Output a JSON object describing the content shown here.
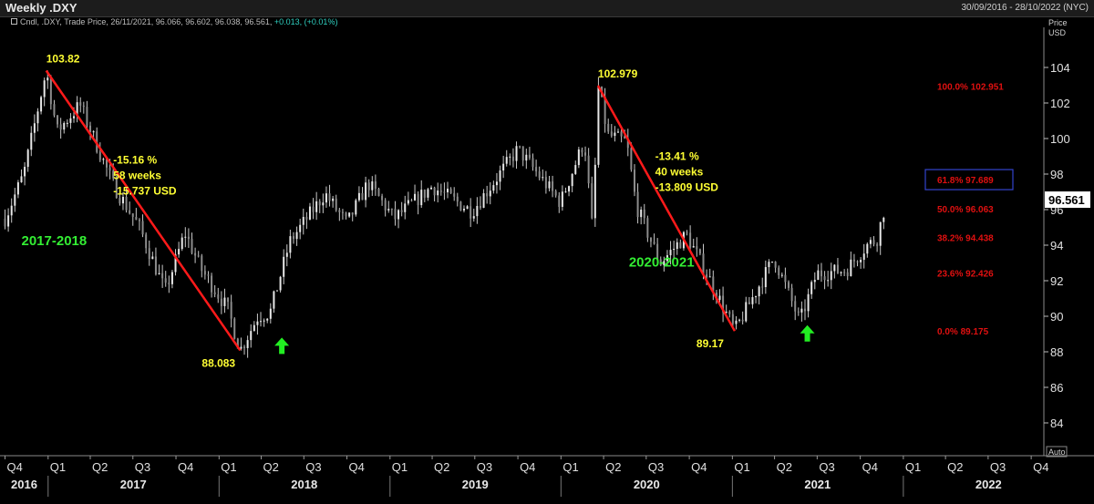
{
  "window": {
    "title": "Weekly .DXY",
    "date_range": "30/09/2016 - 28/10/2022 (NYC)"
  },
  "legend": {
    "text": "Cndl, .DXY, Trade Price, 26/11/2021, 96.066, 96.602, 96.038, 96.561,",
    "change": "+0.013, (+0.01%)"
  },
  "axis": {
    "price_title_1": "Price",
    "price_title_2": "USD",
    "auto_label": "Auto",
    "last_price": "96.561"
  },
  "colors": {
    "background": "#000000",
    "candle": "#c8c8c8",
    "trend": "#ff1a1a",
    "annotation": "#ffff33",
    "label": "#33ee33",
    "fib": "#e01010"
  },
  "chart_data": {
    "type": "candlestick",
    "ylim": [
      83,
      106
    ],
    "y_ticks": [
      84,
      86,
      88,
      90,
      92,
      94,
      96,
      98,
      100,
      102,
      104
    ],
    "x_quarter_labels": [
      "Q4",
      "Q1",
      "Q2",
      "Q3",
      "Q4",
      "Q1",
      "Q2",
      "Q3",
      "Q4",
      "Q1",
      "Q2",
      "Q3",
      "Q4",
      "Q1",
      "Q2",
      "Q3",
      "Q4",
      "Q1",
      "Q2",
      "Q3",
      "Q4",
      "Q1",
      "Q2",
      "Q3",
      "Q4"
    ],
    "x_year_labels": [
      "2016",
      "2017",
      "2018",
      "2019",
      "2020",
      "2021",
      "2022"
    ],
    "anchors": [
      {
        "date": "2016-10-01",
        "value": 95.5
      },
      {
        "date": "2016-11-10",
        "value": 98.0
      },
      {
        "date": "2016-12-28",
        "value": 103.82
      },
      {
        "date": "2017-01-20",
        "value": 100.4
      },
      {
        "date": "2017-03-10",
        "value": 101.9
      },
      {
        "date": "2017-05-20",
        "value": 97.4
      },
      {
        "date": "2017-07-15",
        "value": 95.0
      },
      {
        "date": "2017-09-08",
        "value": 91.4
      },
      {
        "date": "2017-10-20",
        "value": 94.7
      },
      {
        "date": "2017-11-25",
        "value": 92.6
      },
      {
        "date": "2018-01-20",
        "value": 90.4
      },
      {
        "date": "2018-02-15",
        "value": 88.083
      },
      {
        "date": "2018-03-25",
        "value": 90.0
      },
      {
        "date": "2018-04-20",
        "value": 90.2
      },
      {
        "date": "2018-06-01",
        "value": 94.2
      },
      {
        "date": "2018-08-15",
        "value": 96.9
      },
      {
        "date": "2018-10-01",
        "value": 95.2
      },
      {
        "date": "2018-11-15",
        "value": 97.5
      },
      {
        "date": "2019-01-10",
        "value": 95.5
      },
      {
        "date": "2019-04-01",
        "value": 97.3
      },
      {
        "date": "2019-06-25",
        "value": 95.9
      },
      {
        "date": "2019-10-01",
        "value": 99.4
      },
      {
        "date": "2019-12-31",
        "value": 96.4
      },
      {
        "date": "2020-02-20",
        "value": 99.9
      },
      {
        "date": "2020-03-09",
        "value": 94.6
      },
      {
        "date": "2020-03-20",
        "value": 102.979
      },
      {
        "date": "2020-04-10",
        "value": 100.2
      },
      {
        "date": "2020-05-20",
        "value": 99.8
      },
      {
        "date": "2020-06-10",
        "value": 96.2
      },
      {
        "date": "2020-07-31",
        "value": 93.0
      },
      {
        "date": "2020-09-25",
        "value": 94.6
      },
      {
        "date": "2020-11-15",
        "value": 92.0
      },
      {
        "date": "2021-01-06",
        "value": 89.17
      },
      {
        "date": "2021-03-31",
        "value": 93.3
      },
      {
        "date": "2021-05-25",
        "value": 89.7
      },
      {
        "date": "2021-06-30",
        "value": 92.4
      },
      {
        "date": "2021-09-01",
        "value": 92.6
      },
      {
        "date": "2021-10-15",
        "value": 94.0
      },
      {
        "date": "2021-11-05",
        "value": 94.3
      },
      {
        "date": "2021-11-26",
        "value": 96.561
      }
    ],
    "trendlines": [
      {
        "from": {
          "date": "2016-12-28",
          "value": 103.82
        },
        "to": {
          "date": "2018-02-15",
          "value": 88.083
        }
      },
      {
        "from": {
          "date": "2020-03-20",
          "value": 102.979
        },
        "to": {
          "date": "2021-01-06",
          "value": 89.17
        }
      }
    ],
    "price_labels": [
      {
        "text": "103.82",
        "date": "2016-12-28",
        "value": 103.82,
        "pos": "above"
      },
      {
        "text": "88.083",
        "date": "2018-02-15",
        "value": 88.083,
        "pos": "below"
      },
      {
        "text": "102.979",
        "date": "2020-03-20",
        "value": 102.979,
        "pos": "above"
      },
      {
        "text": "89.17",
        "date": "2021-01-06",
        "value": 89.17,
        "pos": "below"
      }
    ],
    "move_stats": [
      {
        "date": "2017-05-20",
        "value": 98.6,
        "lines": [
          "-15.16 %",
          "58 weeks",
          "-15.737 USD"
        ]
      },
      {
        "date": "2020-07-20",
        "value": 98.8,
        "lines": [
          "-13.41 %",
          "40 weeks",
          "-13.809 USD"
        ]
      }
    ],
    "period_labels": [
      {
        "text": "2017-2018",
        "date": "2016-11-05",
        "value": 94.0
      },
      {
        "text": "2020-2021",
        "date": "2020-05-25",
        "value": 92.8
      }
    ],
    "up_arrows": [
      {
        "date": "2018-05-15",
        "value": 88.8
      },
      {
        "date": "2021-06-10",
        "value": 89.5
      }
    ],
    "fibonacci": [
      {
        "level": "100.0%",
        "value": "102.951",
        "price": 102.951,
        "highlight": false
      },
      {
        "level": "61.8%",
        "value": "97.689",
        "price": 97.689,
        "highlight": true
      },
      {
        "level": "50.0%",
        "value": "96.063",
        "price": 96.063,
        "highlight": false
      },
      {
        "level": "38.2%",
        "value": "94.438",
        "price": 94.438,
        "highlight": false
      },
      {
        "level": "23.6%",
        "value": "92.426",
        "price": 92.426,
        "highlight": false
      },
      {
        "level": "0.0%",
        "value": "89.175",
        "price": 89.175,
        "highlight": false
      }
    ]
  }
}
